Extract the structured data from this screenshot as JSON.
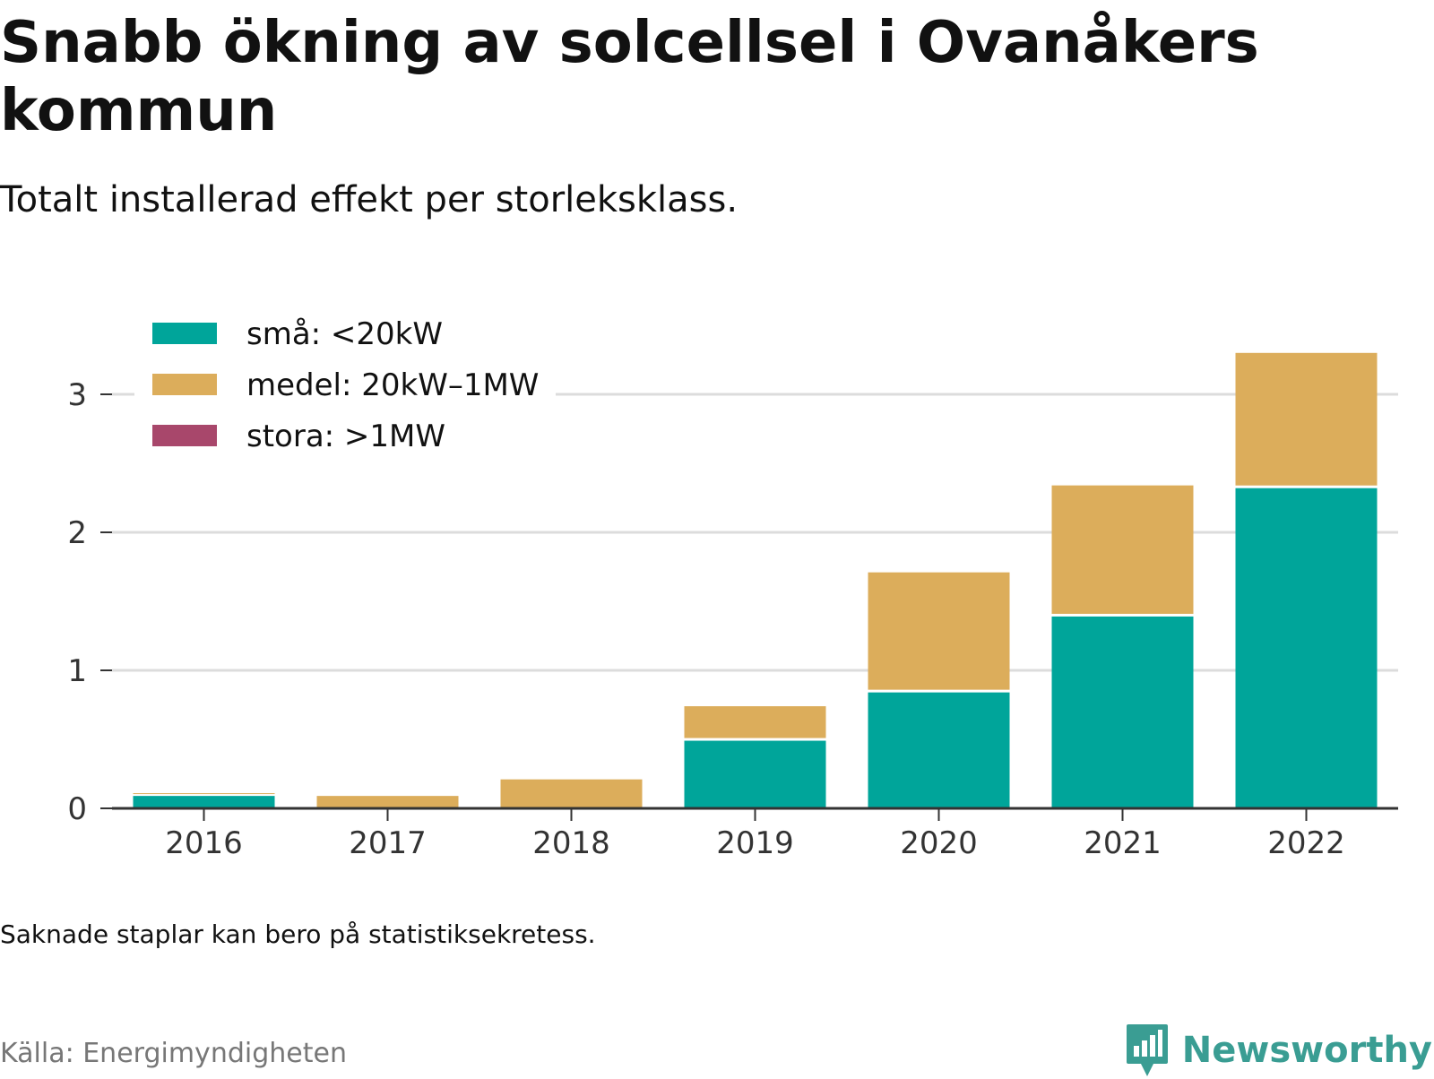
{
  "header": {
    "title": "Snabb ökning av solcellsel i Ovanåkers kommun",
    "subtitle": "Totalt installerad effekt per storleksklass."
  },
  "footer": {
    "note": "Saknade staplar kan bero på statistiksekretess.",
    "source": "Källa: Energimyndigheten",
    "brand": "Newsworthy",
    "brand_icon": "bar-chart-speech-bubble-icon",
    "brand_color": "#3a9d93"
  },
  "chart_data": {
    "type": "bar",
    "stacked": true,
    "categories": [
      "2016",
      "2017",
      "2018",
      "2019",
      "2020",
      "2021",
      "2022"
    ],
    "series": [
      {
        "name": "små: <20kW",
        "color": "#00a59a",
        "values": [
          0.09,
          0,
          0,
          0.49,
          0.84,
          1.39,
          2.32
        ]
      },
      {
        "name": "medel: 20kW–1MW",
        "color": "#dcad5b",
        "values": [
          0.02,
          0.09,
          0.21,
          0.25,
          0.87,
          0.95,
          0.98
        ]
      },
      {
        "name": "stora: >1MW",
        "color": "#a8476b",
        "values": [
          0,
          0,
          0,
          0,
          0,
          0,
          0
        ]
      }
    ],
    "yticks": [
      0,
      1,
      2,
      3
    ],
    "ylim": [
      0,
      3.4
    ],
    "grid": true,
    "legend_position": "top-left",
    "title": "Snabb ökning av solcellsel i Ovanåkers kommun",
    "subtitle": "Totalt installerad effekt per storleksklass.",
    "xlabel": "",
    "ylabel": ""
  }
}
